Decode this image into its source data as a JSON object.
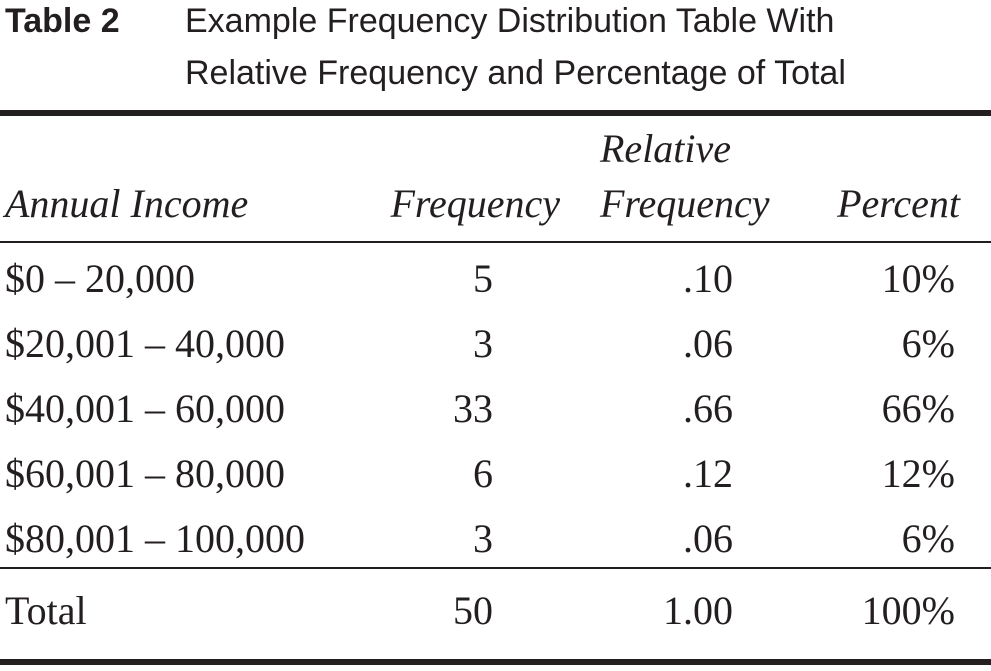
{
  "title": {
    "label": "Table 2",
    "lines": [
      "Example Frequency Distribution Table With",
      "Relative Frequency and Percentage of Total"
    ]
  },
  "table": {
    "header": [
      "Annual Income",
      "Frequency",
      [
        "Relative",
        "Frequency"
      ],
      "Percent"
    ],
    "rows": [
      [
        "$0 – 20,000",
        "5",
        ".10",
        "10%"
      ],
      [
        "$20,001 – 40,000",
        "3",
        ".06",
        "6%"
      ],
      [
        "$40,001 – 60,000",
        "33",
        ".66",
        "66%"
      ],
      [
        "$60,001 – 80,000",
        "6",
        ".12",
        "12%"
      ],
      [
        "$80,001 – 100,000",
        "3",
        ".06",
        "6%"
      ]
    ],
    "total": [
      "Total",
      "50",
      "1.00",
      "100%"
    ]
  }
}
